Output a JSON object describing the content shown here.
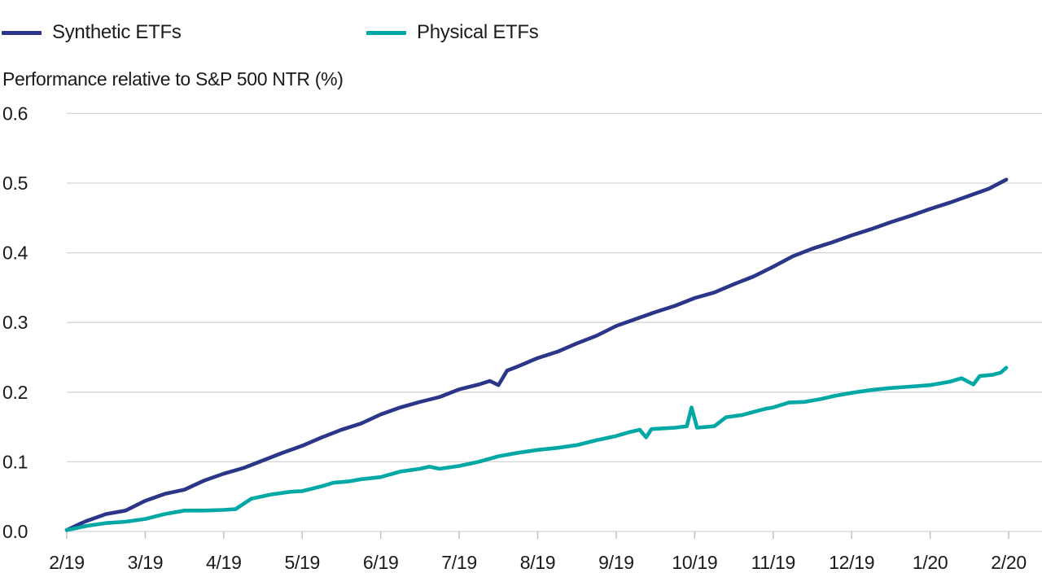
{
  "legend": {
    "items": [
      {
        "label": "Synthetic ETFs",
        "color": "#2b3688"
      },
      {
        "label": "Physical ETFs",
        "color": "#00a8a5"
      }
    ]
  },
  "chart_data": {
    "type": "line",
    "title": "Performance relative to S&P 500 NTR (%)",
    "xlabel": "",
    "ylabel": "Performance relative to S&P 500 NTR (%)",
    "x_tick_labels": [
      "2/19",
      "3/19",
      "4/19",
      "5/19",
      "6/19",
      "7/19",
      "8/19",
      "9/19",
      "10/19",
      "11/19",
      "12/19",
      "1/20",
      "2/20"
    ],
    "x_unit": "months since 2/19 tick (0 = 2/19, 12 = 2/20)",
    "y_ticks": [
      0.0,
      0.1,
      0.2,
      0.3,
      0.4,
      0.5,
      0.6
    ],
    "y_tick_labels": [
      "0.0",
      "0.1",
      "0.2",
      "0.3",
      "0.4",
      "0.5",
      "0.6"
    ],
    "ylim": [
      0,
      0.6
    ],
    "grid": "horizontal",
    "grid_color": "#d4d4d4",
    "tick_color": "#c0c0c0",
    "legend_position": "top-left",
    "series": [
      {
        "name": "Synthetic ETFs",
        "color": "#2b3688",
        "points": [
          [
            0,
            0.002
          ],
          [
            0.15,
            0.01
          ],
          [
            0.25,
            0.015
          ],
          [
            0.5,
            0.025
          ],
          [
            0.75,
            0.03
          ],
          [
            1,
            0.044
          ],
          [
            1.25,
            0.054
          ],
          [
            1.5,
            0.06
          ],
          [
            1.75,
            0.073
          ],
          [
            2,
            0.083
          ],
          [
            2.25,
            0.091
          ],
          [
            2.5,
            0.102
          ],
          [
            2.75,
            0.113
          ],
          [
            3,
            0.123
          ],
          [
            3.25,
            0.135
          ],
          [
            3.5,
            0.146
          ],
          [
            3.75,
            0.155
          ],
          [
            4,
            0.168
          ],
          [
            4.25,
            0.178
          ],
          [
            4.5,
            0.186
          ],
          [
            4.75,
            0.193
          ],
          [
            5,
            0.204
          ],
          [
            5.25,
            0.211
          ],
          [
            5.39,
            0.216
          ],
          [
            5.5,
            0.21
          ],
          [
            5.61,
            0.231
          ],
          [
            5.75,
            0.237
          ],
          [
            6,
            0.249
          ],
          [
            6.25,
            0.258
          ],
          [
            6.5,
            0.27
          ],
          [
            6.75,
            0.281
          ],
          [
            7,
            0.295
          ],
          [
            7.25,
            0.305
          ],
          [
            7.5,
            0.315
          ],
          [
            7.75,
            0.324
          ],
          [
            8,
            0.335
          ],
          [
            8.25,
            0.343
          ],
          [
            8.5,
            0.355
          ],
          [
            8.75,
            0.366
          ],
          [
            9,
            0.38
          ],
          [
            9.25,
            0.395
          ],
          [
            9.5,
            0.406
          ],
          [
            9.75,
            0.415
          ],
          [
            10,
            0.425
          ],
          [
            10.25,
            0.434
          ],
          [
            10.5,
            0.444
          ],
          [
            10.75,
            0.453
          ],
          [
            11,
            0.463
          ],
          [
            11.25,
            0.472
          ],
          [
            11.5,
            0.482
          ],
          [
            11.75,
            0.492
          ],
          [
            11.97,
            0.505
          ]
        ]
      },
      {
        "name": "Physical ETFs",
        "color": "#00a8a5",
        "points": [
          [
            0,
            0.002
          ],
          [
            0.25,
            0.008
          ],
          [
            0.5,
            0.012
          ],
          [
            0.75,
            0.014
          ],
          [
            1,
            0.018
          ],
          [
            1.25,
            0.025
          ],
          [
            1.5,
            0.03
          ],
          [
            1.75,
            0.03
          ],
          [
            2,
            0.031
          ],
          [
            2.15,
            0.032
          ],
          [
            2.35,
            0.047
          ],
          [
            2.6,
            0.053
          ],
          [
            2.85,
            0.057
          ],
          [
            3,
            0.058
          ],
          [
            3.25,
            0.065
          ],
          [
            3.4,
            0.07
          ],
          [
            3.6,
            0.072
          ],
          [
            3.75,
            0.075
          ],
          [
            4,
            0.078
          ],
          [
            4.25,
            0.086
          ],
          [
            4.5,
            0.09
          ],
          [
            4.62,
            0.093
          ],
          [
            4.75,
            0.09
          ],
          [
            5,
            0.094
          ],
          [
            5.25,
            0.1
          ],
          [
            5.5,
            0.108
          ],
          [
            5.75,
            0.113
          ],
          [
            6,
            0.117
          ],
          [
            6.25,
            0.12
          ],
          [
            6.5,
            0.124
          ],
          [
            6.75,
            0.131
          ],
          [
            7,
            0.137
          ],
          [
            7.15,
            0.142
          ],
          [
            7.3,
            0.146
          ],
          [
            7.38,
            0.135
          ],
          [
            7.45,
            0.147
          ],
          [
            7.6,
            0.148
          ],
          [
            7.75,
            0.149
          ],
          [
            7.9,
            0.151
          ],
          [
            7.96,
            0.178
          ],
          [
            8.03,
            0.149
          ],
          [
            8.25,
            0.151
          ],
          [
            8.4,
            0.164
          ],
          [
            8.6,
            0.167
          ],
          [
            8.9,
            0.176
          ],
          [
            9,
            0.178
          ],
          [
            9.2,
            0.185
          ],
          [
            9.4,
            0.186
          ],
          [
            9.6,
            0.19
          ],
          [
            9.8,
            0.195
          ],
          [
            10,
            0.199
          ],
          [
            10.25,
            0.203
          ],
          [
            10.5,
            0.206
          ],
          [
            10.75,
            0.208
          ],
          [
            11,
            0.21
          ],
          [
            11.25,
            0.215
          ],
          [
            11.4,
            0.22
          ],
          [
            11.55,
            0.211
          ],
          [
            11.63,
            0.223
          ],
          [
            11.8,
            0.225
          ],
          [
            11.9,
            0.228
          ],
          [
            11.97,
            0.235
          ]
        ]
      }
    ]
  }
}
